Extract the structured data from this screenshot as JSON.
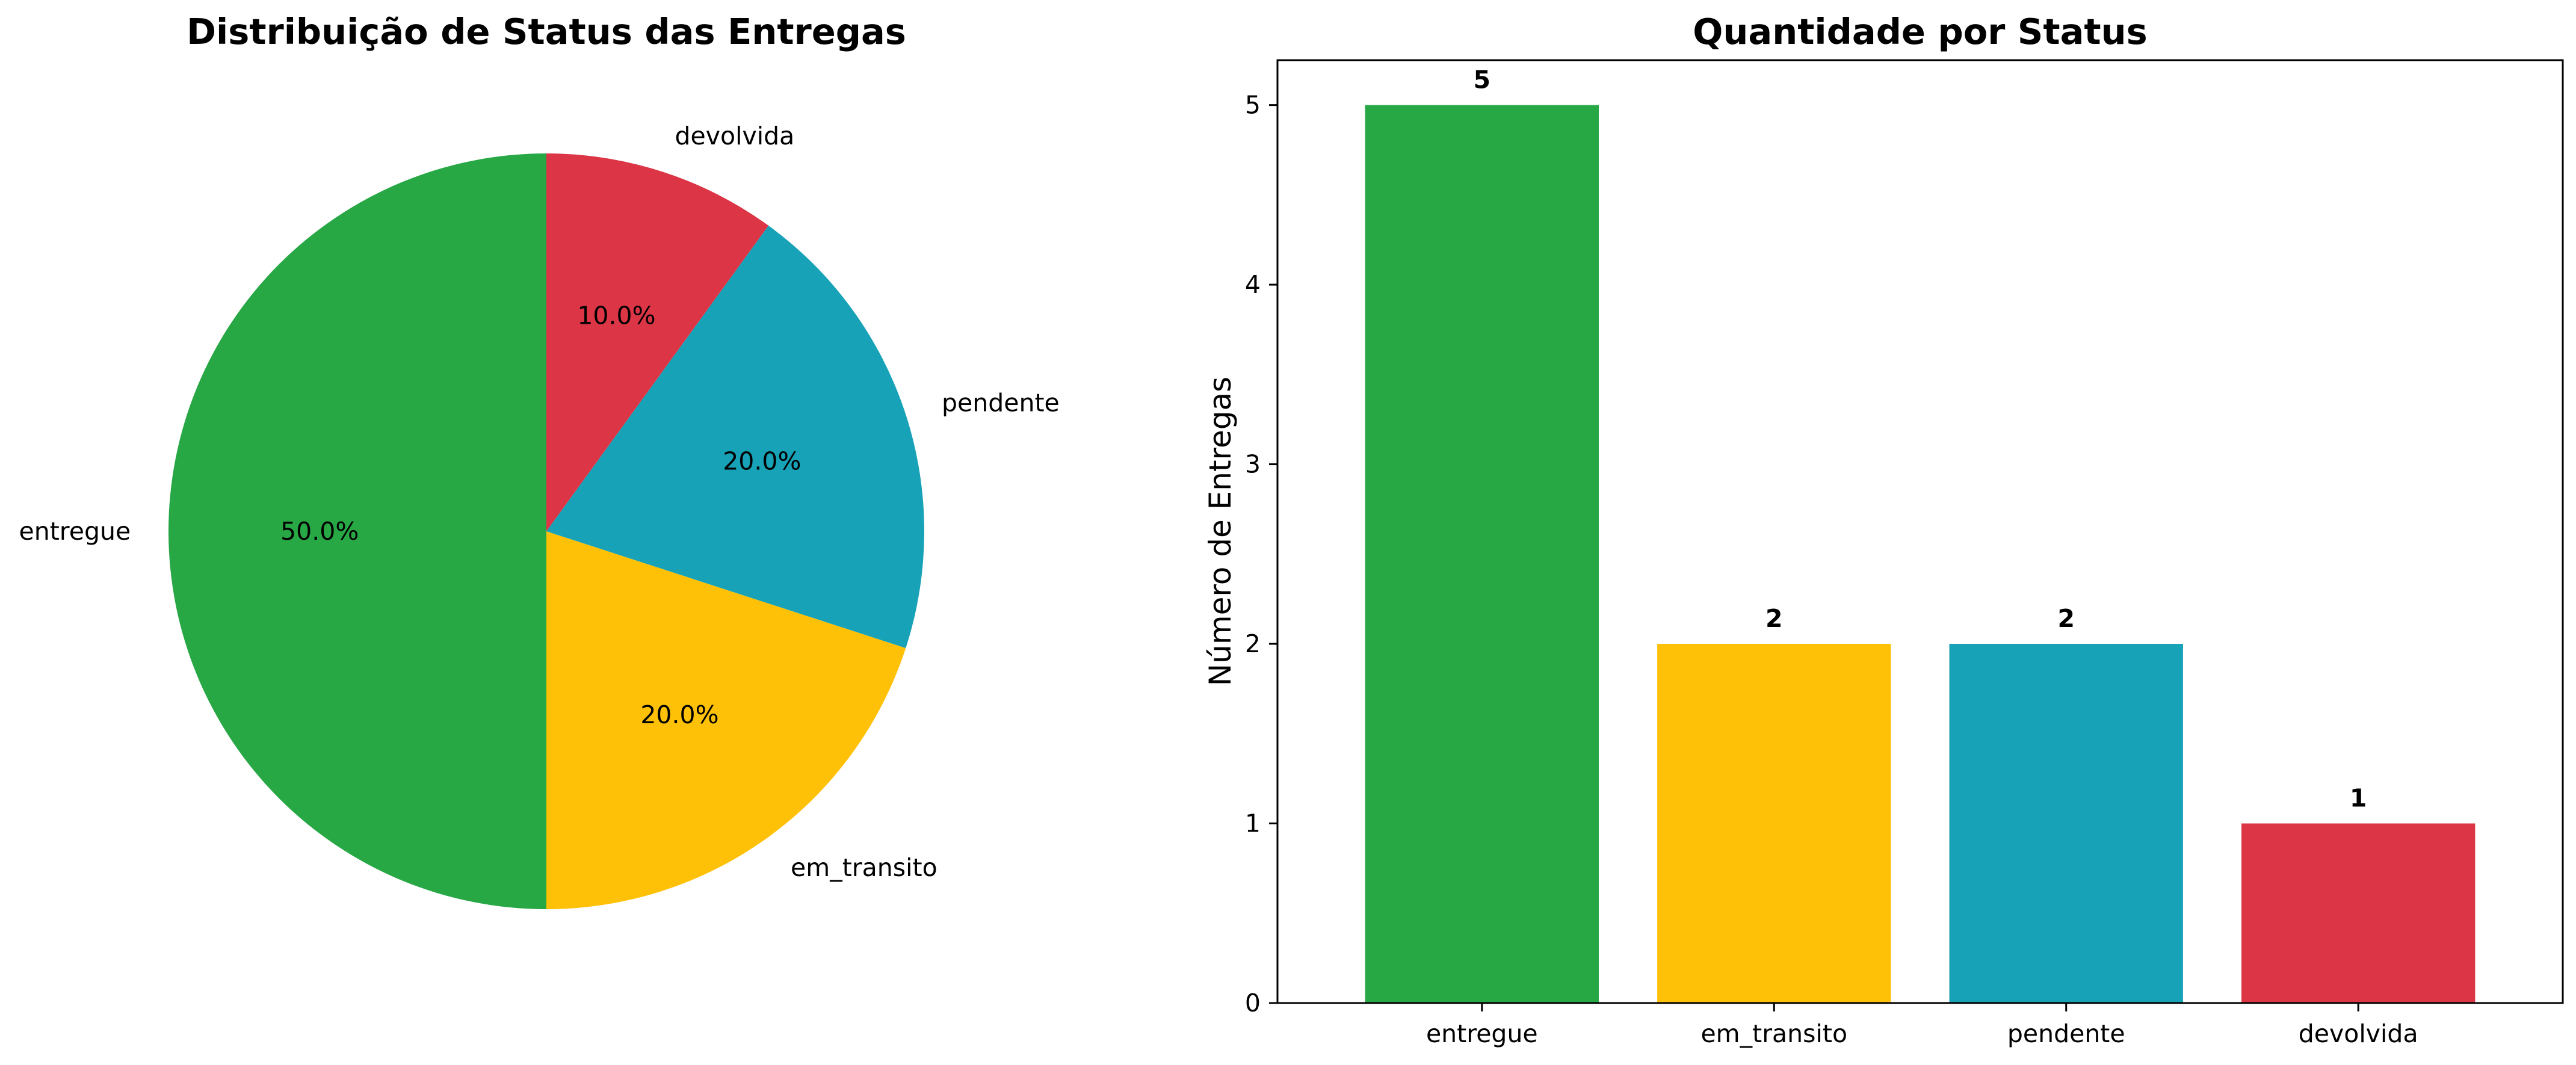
{
  "chart_data": [
    {
      "type": "pie",
      "title": "Distribuição de Status das Entregas",
      "categories": [
        "entregue",
        "em_transito",
        "pendente",
        "devolvida"
      ],
      "values": [
        5,
        2,
        2,
        1
      ],
      "percent_labels": [
        "50.0%",
        "20.0%",
        "20.0%",
        "10.0%"
      ],
      "colors": [
        "#28a745",
        "#ffc107",
        "#17a2b8",
        "#dc3545"
      ],
      "start_angle": 90,
      "direction": "counterclockwise"
    },
    {
      "type": "bar",
      "title": "Quantidade por Status",
      "categories": [
        "entregue",
        "em_transito",
        "pendente",
        "devolvida"
      ],
      "values": [
        5,
        2,
        2,
        1
      ],
      "value_labels": [
        "5",
        "2",
        "2",
        "1"
      ],
      "colors": [
        "#28a745",
        "#ffc107",
        "#17a2b8",
        "#dc3545"
      ],
      "xlabel": "",
      "ylabel": "Número de Entregas",
      "ylim": [
        0,
        5.25
      ],
      "yticks": [
        0,
        1,
        2,
        3,
        4,
        5
      ],
      "grid": false
    }
  ]
}
